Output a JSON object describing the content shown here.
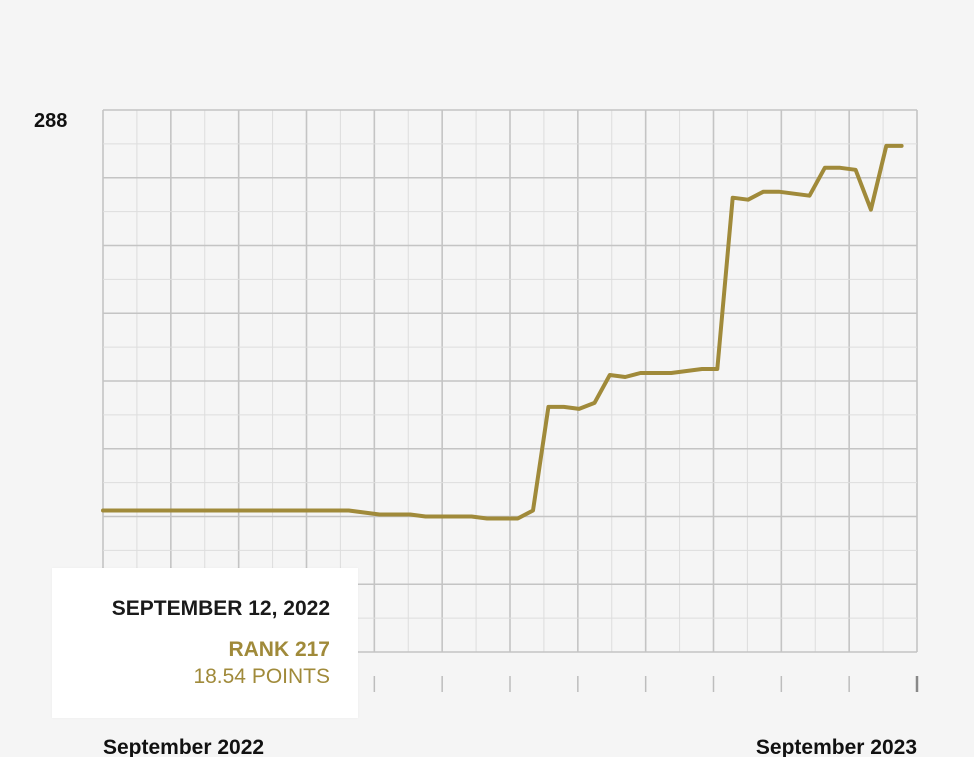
{
  "chart_data": {
    "type": "line",
    "y_axis_label_top": "288",
    "x_start_label": "September 2022",
    "x_end_label": "September 2023",
    "y_axis_reversed": true,
    "ylim": [
      288,
      16
    ],
    "grid": true,
    "series": [
      {
        "color": "#a08a3a",
        "x_weeks": [
          0,
          1,
          2,
          3,
          4,
          5,
          6,
          7,
          8,
          9,
          10,
          11,
          12,
          13,
          14,
          15,
          16,
          17,
          18,
          19,
          20,
          21,
          22,
          23,
          24,
          25,
          26,
          27,
          28,
          29,
          30,
          31,
          32,
          33,
          34,
          35,
          36,
          37,
          38,
          39,
          40,
          41,
          42,
          43,
          44,
          45,
          46,
          47,
          48,
          49,
          50,
          51,
          52,
          53
        ],
        "rank": [
          217,
          217,
          217,
          217,
          217,
          217,
          217,
          217,
          217,
          217,
          217,
          217,
          217,
          217,
          217,
          217,
          217,
          218,
          219,
          219,
          219,
          220,
          220,
          220,
          220,
          221,
          221,
          221,
          217,
          165,
          165,
          166,
          163,
          149,
          150,
          148,
          148,
          148,
          147,
          146,
          146,
          60,
          61,
          57,
          57,
          58,
          59,
          45,
          45,
          46,
          66,
          34,
          34
        ]
      }
    ],
    "highlight": {
      "date": "SEPTEMBER 12, 2022",
      "rank": "RANK 217",
      "points": "18.54 POINTS"
    }
  }
}
